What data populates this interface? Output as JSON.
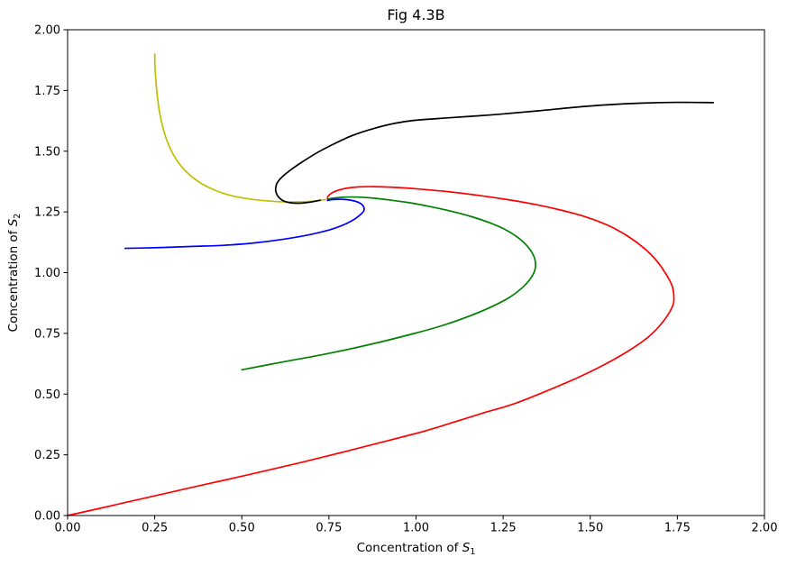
{
  "figure_title": "Fig 4.3B",
  "chart_data": {
    "type": "line",
    "title": "Fig 4.3B",
    "xlabel": {
      "prefix": "Concentration of ",
      "symbol": "S",
      "subscript": "1"
    },
    "ylabel": {
      "prefix": "Concentration of ",
      "symbol": "S",
      "subscript": "2"
    },
    "xlim": [
      0,
      2
    ],
    "ylim": [
      0,
      2
    ],
    "xtick_labels": [
      "0.00",
      "0.25",
      "0.50",
      "0.75",
      "1.00",
      "1.25",
      "1.50",
      "1.75",
      "2.00"
    ],
    "ytick_labels": [
      "0.00",
      "0.25",
      "0.50",
      "0.75",
      "1.00",
      "1.25",
      "1.50",
      "1.75",
      "2.00"
    ],
    "grid": false,
    "legend": "none",
    "background_color": "#ffffff",
    "axis_color": "#000000",
    "spiral_convergence_point": [
      0.75,
      1.3
    ],
    "series": [
      {
        "name": "red-trajectory",
        "color": "#ff0000",
        "start_point": [
          0,
          0
        ],
        "points": [
          [
            0,
            0
          ],
          [
            0.1,
            0.032
          ],
          [
            0.194,
            0.063
          ],
          [
            0.29,
            0.094
          ],
          [
            0.388,
            0.126
          ],
          [
            0.485,
            0.157
          ],
          [
            0.582,
            0.189
          ],
          [
            0.68,
            0.222
          ],
          [
            0.776,
            0.256
          ],
          [
            0.872,
            0.291
          ],
          [
            0.97,
            0.327
          ],
          [
            1.035,
            0.352
          ],
          [
            1.11,
            0.385
          ],
          [
            1.19,
            0.421
          ],
          [
            1.281,
            0.46
          ],
          [
            1.37,
            0.51
          ],
          [
            1.46,
            0.565
          ],
          [
            1.539,
            0.62
          ],
          [
            1.61,
            0.678
          ],
          [
            1.669,
            0.738
          ],
          [
            1.71,
            0.8
          ],
          [
            1.736,
            0.861
          ],
          [
            1.74,
            0.9
          ],
          [
            1.735,
            0.945
          ],
          [
            1.717,
            0.995
          ],
          [
            1.69,
            1.05
          ],
          [
            1.655,
            1.1
          ],
          [
            1.61,
            1.148
          ],
          [
            1.555,
            1.192
          ],
          [
            1.49,
            1.228
          ],
          [
            1.42,
            1.256
          ],
          [
            1.345,
            1.28
          ],
          [
            1.265,
            1.3
          ],
          [
            1.18,
            1.318
          ],
          [
            1.095,
            1.333
          ],
          [
            1.01,
            1.344
          ],
          [
            0.94,
            1.351
          ],
          [
            0.88,
            1.354
          ],
          [
            0.835,
            1.353
          ],
          [
            0.798,
            1.347
          ],
          [
            0.772,
            1.337
          ],
          [
            0.755,
            1.325
          ],
          [
            0.747,
            1.313
          ],
          [
            0.746,
            1.305
          ]
        ]
      },
      {
        "name": "green-trajectory",
        "color": "#008000",
        "start_point": [
          0.5,
          0.6
        ],
        "points": [
          [
            0.5,
            0.6
          ],
          [
            0.62,
            0.633
          ],
          [
            0.737,
            0.664
          ],
          [
            0.87,
            0.705
          ],
          [
            0.996,
            0.75
          ],
          [
            1.075,
            0.782
          ],
          [
            1.144,
            0.816
          ],
          [
            1.21,
            0.855
          ],
          [
            1.268,
            0.898
          ],
          [
            1.31,
            0.945
          ],
          [
            1.335,
            0.99
          ],
          [
            1.343,
            1.028
          ],
          [
            1.338,
            1.068
          ],
          [
            1.32,
            1.108
          ],
          [
            1.292,
            1.145
          ],
          [
            1.255,
            1.178
          ],
          [
            1.21,
            1.206
          ],
          [
            1.158,
            1.231
          ],
          [
            1.1,
            1.253
          ],
          [
            1.04,
            1.272
          ],
          [
            0.98,
            1.288
          ],
          [
            0.925,
            1.299
          ],
          [
            0.875,
            1.307
          ],
          [
            0.832,
            1.311
          ],
          [
            0.797,
            1.311
          ],
          [
            0.77,
            1.308
          ],
          [
            0.752,
            1.304
          ],
          [
            0.746,
            1.3
          ]
        ]
      },
      {
        "name": "blue-trajectory",
        "color": "#0000ff",
        "start_point": [
          0.165,
          1.1
        ],
        "points": [
          [
            0.165,
            1.1
          ],
          [
            0.26,
            1.103
          ],
          [
            0.36,
            1.108
          ],
          [
            0.453,
            1.113
          ],
          [
            0.54,
            1.123
          ],
          [
            0.626,
            1.139
          ],
          [
            0.7,
            1.158
          ],
          [
            0.765,
            1.182
          ],
          [
            0.815,
            1.213
          ],
          [
            0.845,
            1.245
          ],
          [
            0.851,
            1.262
          ],
          [
            0.845,
            1.28
          ],
          [
            0.828,
            1.293
          ],
          [
            0.803,
            1.3
          ],
          [
            0.777,
            1.302
          ],
          [
            0.756,
            1.3
          ],
          [
            0.746,
            1.297
          ]
        ]
      },
      {
        "name": "yellow-trajectory",
        "color": "#bfbf00",
        "start_point": [
          0.25,
          1.9
        ],
        "points": [
          [
            0.25,
            1.9
          ],
          [
            0.251,
            1.84
          ],
          [
            0.254,
            1.78
          ],
          [
            0.258,
            1.72
          ],
          [
            0.264,
            1.66
          ],
          [
            0.273,
            1.6
          ],
          [
            0.286,
            1.54
          ],
          [
            0.303,
            1.487
          ],
          [
            0.325,
            1.44
          ],
          [
            0.352,
            1.4
          ],
          [
            0.385,
            1.366
          ],
          [
            0.423,
            1.339
          ],
          [
            0.465,
            1.319
          ],
          [
            0.51,
            1.306
          ],
          [
            0.558,
            1.297
          ],
          [
            0.606,
            1.292
          ],
          [
            0.652,
            1.291
          ],
          [
            0.692,
            1.293
          ],
          [
            0.722,
            1.297
          ],
          [
            0.74,
            1.301
          ]
        ]
      },
      {
        "name": "black-trajectory",
        "color": "#000000",
        "start_point": [
          1.85,
          1.7
        ],
        "points": [
          [
            1.853,
            1.7
          ],
          [
            1.75,
            1.701
          ],
          [
            1.65,
            1.698
          ],
          [
            1.55,
            1.691
          ],
          [
            1.45,
            1.68
          ],
          [
            1.35,
            1.666
          ],
          [
            1.23,
            1.651
          ],
          [
            1.1,
            1.638
          ],
          [
            0.996,
            1.627
          ],
          [
            0.94,
            1.615
          ],
          [
            0.88,
            1.594
          ],
          [
            0.82,
            1.566
          ],
          [
            0.77,
            1.534
          ],
          [
            0.72,
            1.497
          ],
          [
            0.68,
            1.462
          ],
          [
            0.645,
            1.428
          ],
          [
            0.617,
            1.396
          ],
          [
            0.601,
            1.368
          ],
          [
            0.597,
            1.342
          ],
          [
            0.603,
            1.316
          ],
          [
            0.619,
            1.296
          ],
          [
            0.642,
            1.287
          ],
          [
            0.67,
            1.286
          ],
          [
            0.7,
            1.291
          ],
          [
            0.725,
            1.298
          ]
        ]
      }
    ]
  }
}
